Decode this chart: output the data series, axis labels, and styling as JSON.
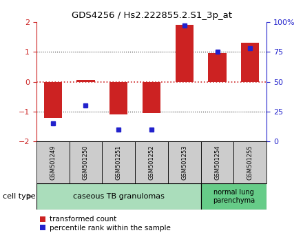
{
  "title": "GDS4256 / Hs2.222855.2.S1_3p_at",
  "samples": [
    "GSM501249",
    "GSM501250",
    "GSM501251",
    "GSM501252",
    "GSM501253",
    "GSM501254",
    "GSM501255"
  ],
  "transformed_counts": [
    -1.2,
    0.05,
    -1.1,
    -1.05,
    1.9,
    0.95,
    1.3
  ],
  "percentile_ranks": [
    15,
    30,
    10,
    10,
    97,
    75,
    78
  ],
  "ylim_left": [
    -2,
    2
  ],
  "ylim_right": [
    0,
    100
  ],
  "yticks_left": [
    -2,
    -1,
    0,
    1,
    2
  ],
  "yticks_right": [
    0,
    25,
    50,
    75,
    100
  ],
  "ytick_labels_right": [
    "0",
    "25",
    "50",
    "75",
    "100%"
  ],
  "bar_color": "#cc2222",
  "dot_color": "#2222cc",
  "hline0_color": "#cc2222",
  "hline_color": "#333333",
  "group1_label": "caseous TB granulomas",
  "group2_label": "normal lung\nparenchyma",
  "group1_indices": [
    0,
    1,
    2,
    3,
    4
  ],
  "group2_indices": [
    5,
    6
  ],
  "group1_bg": "#aaddbb",
  "group2_bg": "#66cc88",
  "sample_bg": "#cccccc",
  "legend_bar_label": "transformed count",
  "legend_dot_label": "percentile rank within the sample",
  "cell_type_label": "cell type"
}
